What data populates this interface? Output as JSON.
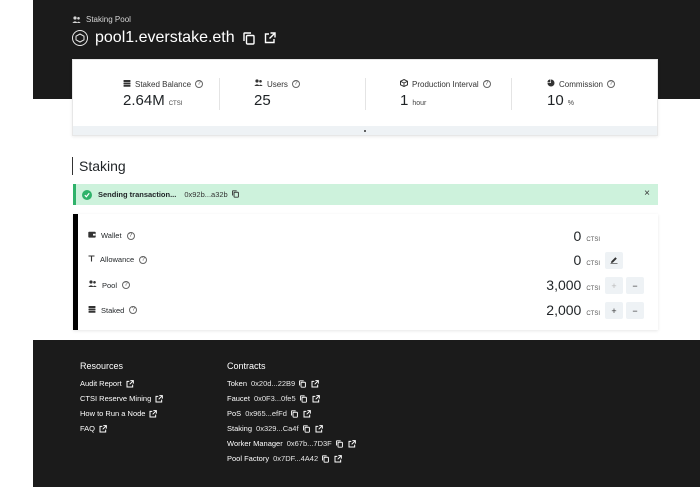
{
  "header": {
    "kicker": "Staking Pool",
    "pool_name": "pool1.everstake.eth"
  },
  "stats": [
    {
      "label": "Staked Balance",
      "value": "2.64M",
      "unit": "CTSI",
      "icon": "coins-icon"
    },
    {
      "label": "Users",
      "value": "25",
      "unit": "",
      "icon": "users-icon"
    },
    {
      "label": "Production Interval",
      "value": "1",
      "unit": "hour",
      "icon": "cube-icon"
    },
    {
      "label": "Commission",
      "value": "10",
      "unit": "%",
      "icon": "pie-chart-icon"
    }
  ],
  "staking": {
    "title": "Staking",
    "alert": {
      "text": "Sending transaction...",
      "hash": "0x92b...a32b",
      "close": "×"
    },
    "rows": [
      {
        "label": "Wallet",
        "value": "0",
        "unit": "CTSI"
      },
      {
        "label": "Allowance",
        "value": "0",
        "unit": "CTSI"
      },
      {
        "label": "Pool",
        "value": "3,000",
        "unit": "CTSI"
      },
      {
        "label": "Staked",
        "value": "2,000",
        "unit": "CTSI"
      }
    ],
    "plus": "+",
    "minus": "−"
  },
  "footer": {
    "resources_title": "Resources",
    "resources": [
      "Audit Report",
      "CTSI Reserve Mining",
      "How to Run a Node",
      "FAQ"
    ],
    "contracts_title": "Contracts",
    "contracts": [
      {
        "name": "Token",
        "address": "0x20d...22B9"
      },
      {
        "name": "Faucet",
        "address": "0x0F3...0fe5"
      },
      {
        "name": "PoS",
        "address": "0x965...efFd"
      },
      {
        "name": "Staking",
        "address": "0x329...Ca4f"
      },
      {
        "name": "Worker Manager",
        "address": "0x67b...7D3F"
      },
      {
        "name": "Pool Factory",
        "address": "0x7DF...4A42"
      }
    ]
  },
  "colors": {
    "header_bg": "#1b1b1b",
    "alert_bg": "#cdf2dc",
    "alert_accent": "#2fb26a",
    "button_bg": "#eef2f5"
  }
}
